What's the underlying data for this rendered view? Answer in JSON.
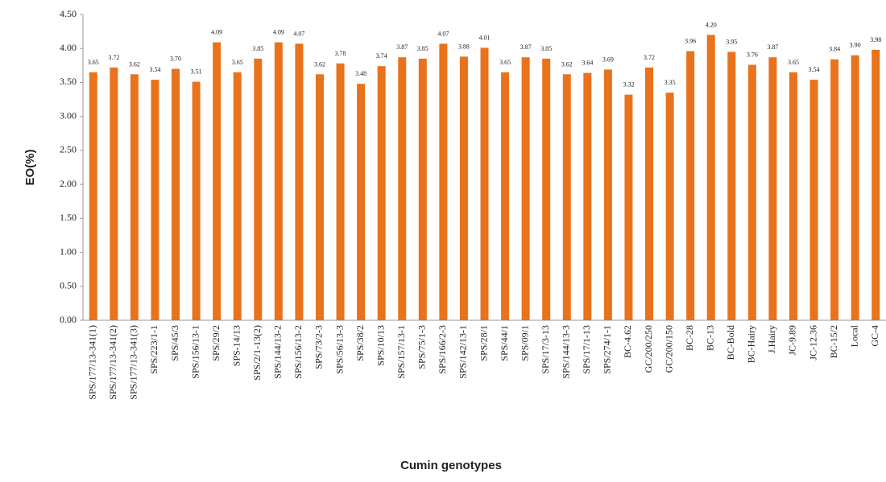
{
  "chart_data": {
    "type": "bar",
    "xlabel": "Cumin genotypes",
    "ylabel": "EO(%)",
    "categories": [
      "SPS/177/13-341(1)",
      "SPS/177/13-341(2)",
      "SPS/177/13-341(3)",
      "SPS/223/1-1",
      "SPS/45/3",
      "SPS/156/13-1",
      "SPS/29/2",
      "SPS-14/13",
      "SPS/2/1-13(2)",
      "SPS/144/13-2",
      "SPS/156/13-2",
      "SPS/73/2-3",
      "SPS/56/13-3",
      "SPS/38/2",
      "SPS/10/13",
      "SPS/157/13-1",
      "SPS/75/1-3",
      "SPS/166/2-3",
      "SPS/142/13-1",
      "SPS/28/1",
      "SPS/44/1",
      "SPS/09/1",
      "SPS/17/3-13",
      "SPS/144/13-3",
      "SPS/17/1-13",
      "SPS/274/1-1",
      "BC-4.62",
      "GC/200/250",
      "GC/200/150",
      "BC-28",
      "BC-13",
      "BC-Bold",
      "BC-Hairy",
      "J.Hairy",
      "JC-9.89",
      "JC-12.36",
      "BC-15/2",
      "Local",
      "GC-4"
    ],
    "values": [
      3.65,
      3.72,
      3.62,
      3.54,
      3.7,
      3.51,
      4.09,
      3.65,
      3.85,
      4.09,
      4.07,
      3.62,
      3.78,
      3.48,
      3.74,
      3.87,
      3.85,
      4.07,
      3.88,
      4.01,
      3.65,
      3.87,
      3.85,
      3.62,
      3.64,
      3.69,
      3.32,
      3.72,
      3.35,
      3.96,
      4.2,
      3.95,
      3.76,
      3.87,
      3.65,
      3.54,
      3.84,
      3.9,
      3.98
    ],
    "value_labels": [
      "3.65",
      "3.72",
      "3.62",
      "3.54",
      "3.70",
      "3.51",
      "4.09",
      "3.65",
      "3.85",
      "4.09",
      "4.07",
      "3.62",
      "3.78",
      "3.48",
      "3.74",
      "3.87",
      "3.85",
      "4.07",
      "3.88",
      "4.01",
      "3.65",
      "3.87",
      "3.85",
      "3.62",
      "3.64",
      "3.69",
      "3.32",
      "3.72",
      "3.35",
      "3.96",
      "4.20",
      "3.95",
      "3.76",
      "3.87",
      "3.65",
      "3.54",
      "3.84",
      "3.90",
      "3.98"
    ],
    "color": "#e8731c",
    "ylim": [
      0,
      4.5
    ],
    "yticks": [
      {
        "value": 0,
        "label": "0.00"
      },
      {
        "value": 0.5,
        "label": "0.50"
      },
      {
        "value": 1,
        "label": "1.00"
      },
      {
        "value": 1.5,
        "label": "1.50"
      },
      {
        "value": 2,
        "label": "2.00"
      },
      {
        "value": 2.5,
        "label": "2.50"
      },
      {
        "value": 3,
        "label": "3.00"
      },
      {
        "value": 3.5,
        "label": "3.50"
      },
      {
        "value": 4,
        "label": "4.00"
      },
      {
        "value": 4.5,
        "label": "4.50"
      }
    ]
  }
}
